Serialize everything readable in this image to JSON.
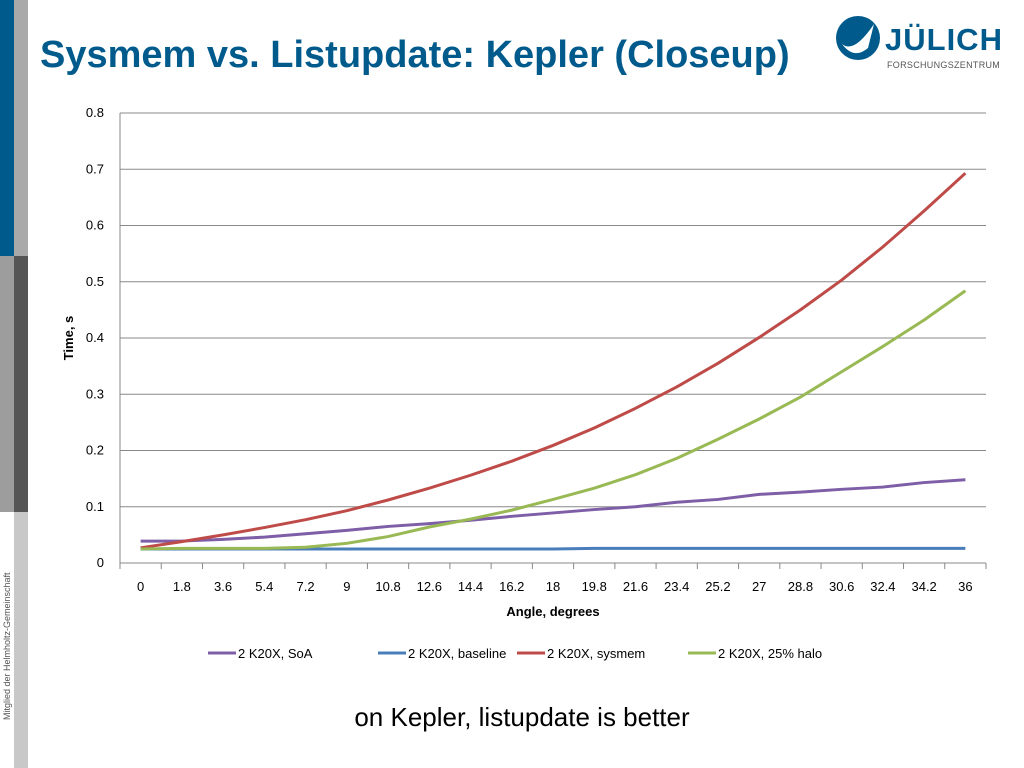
{
  "slide": {
    "title": "Sysmem vs. Listupdate: Kepler (Closeup)",
    "caption": "on Kepler, listupdate is better",
    "side_text": "Mitglied der Helmholtz-Gemeinschaft",
    "logo": {
      "name": "JÜLICH",
      "sub": "FORSCHUNGSZENTRUM"
    }
  },
  "chart_data": {
    "type": "line",
    "xlabel": "Angle, degrees",
    "ylabel": "Time, s",
    "ylim": [
      0,
      0.8
    ],
    "yticks": [
      "0",
      "0.1",
      "0.2",
      "0.3",
      "0.4",
      "0.5",
      "0.6",
      "0.7",
      "0.8"
    ],
    "categories": [
      "0",
      "1.8",
      "3.6",
      "5.4",
      "7.2",
      "9",
      "10.8",
      "12.6",
      "14.4",
      "16.2",
      "18",
      "19.8",
      "21.6",
      "23.4",
      "25.2",
      "27",
      "28.8",
      "30.6",
      "32.4",
      "34.2",
      "36"
    ],
    "grid": true,
    "legend_position": "bottom",
    "series": [
      {
        "name": "2 K20X, SoA",
        "color": "#7e5ea6",
        "values": [
          0.039,
          0.039,
          0.042,
          0.046,
          0.052,
          0.058,
          0.065,
          0.07,
          0.076,
          0.083,
          0.089,
          0.095,
          0.1,
          0.108,
          0.113,
          0.122,
          0.126,
          0.131,
          0.135,
          0.143,
          0.148
        ]
      },
      {
        "name": "2 K20X, baseline",
        "color": "#4a7ebb",
        "values": [
          0.025,
          0.025,
          0.025,
          0.025,
          0.025,
          0.025,
          0.025,
          0.025,
          0.025,
          0.025,
          0.025,
          0.026,
          0.026,
          0.026,
          0.026,
          0.026,
          0.026,
          0.026,
          0.026,
          0.026,
          0.026
        ]
      },
      {
        "name": "2 K20X, sysmem",
        "color": "#be4b48",
        "values": [
          0.027,
          0.038,
          0.05,
          0.063,
          0.077,
          0.093,
          0.112,
          0.133,
          0.156,
          0.181,
          0.209,
          0.24,
          0.275,
          0.313,
          0.355,
          0.401,
          0.45,
          0.503,
          0.562,
          0.626,
          0.693
        ]
      },
      {
        "name": "2 K20X, 25% halo",
        "color": "#98b954",
        "values": [
          0.025,
          0.026,
          0.026,
          0.026,
          0.028,
          0.035,
          0.047,
          0.064,
          0.078,
          0.094,
          0.113,
          0.133,
          0.157,
          0.186,
          0.22,
          0.256,
          0.295,
          0.34,
          0.385,
          0.432,
          0.484
        ]
      }
    ]
  }
}
